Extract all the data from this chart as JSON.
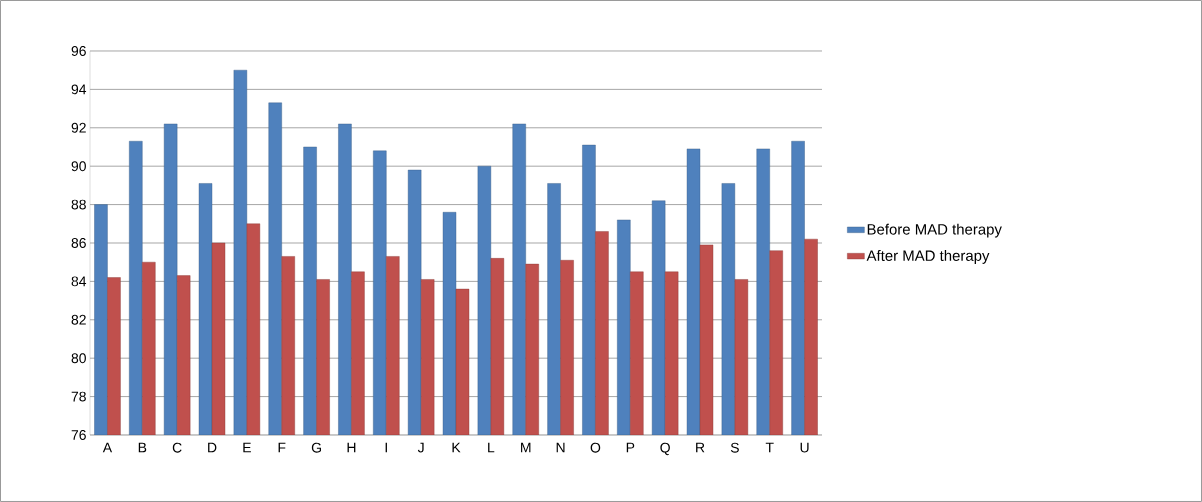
{
  "chart_data": {
    "type": "bar",
    "categories": [
      "A",
      "B",
      "C",
      "D",
      "E",
      "F",
      "G",
      "H",
      "I",
      "J",
      "K",
      "L",
      "M",
      "N",
      "O",
      "P",
      "Q",
      "R",
      "S",
      "T",
      "U"
    ],
    "series": [
      {
        "name": "Before MAD therapy",
        "color": "#4f81bd",
        "values": [
          88.0,
          91.3,
          92.2,
          89.1,
          95.0,
          93.3,
          91.0,
          92.2,
          90.8,
          89.8,
          87.6,
          90.0,
          92.2,
          89.1,
          91.1,
          87.2,
          88.2,
          90.9,
          89.1,
          90.9,
          91.3
        ]
      },
      {
        "name": "After MAD therapy",
        "color": "#c0504d",
        "values": [
          84.2,
          85.0,
          84.3,
          86.0,
          87.0,
          85.3,
          84.1,
          84.5,
          85.3,
          84.1,
          83.6,
          85.2,
          84.9,
          85.1,
          86.6,
          84.5,
          84.5,
          85.9,
          84.1,
          85.6,
          86.2
        ]
      }
    ],
    "ylim": [
      76,
      96
    ],
    "yticks": [
      76,
      78,
      80,
      82,
      84,
      86,
      88,
      90,
      92,
      94,
      96
    ],
    "grid": "y",
    "legend": "right"
  }
}
